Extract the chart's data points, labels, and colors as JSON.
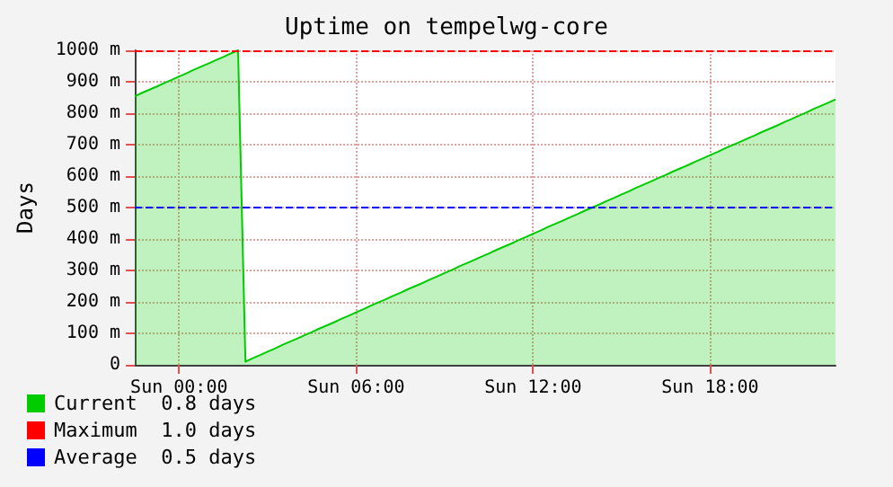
{
  "chart_data": {
    "type": "area",
    "title": "Uptime on tempelwg-core",
    "ylabel": "Days",
    "categories": [
      null,
      null,
      null,
      null,
      null,
      null,
      "Sun 00:00",
      null,
      null,
      null,
      null,
      null,
      null,
      null,
      null,
      null,
      null,
      null,
      null,
      null,
      null,
      null,
      null,
      null,
      null,
      null,
      null,
      null,
      null,
      null,
      "Sun 06:00",
      null,
      null,
      null,
      null,
      null,
      null,
      null,
      null,
      null,
      null,
      null,
      null,
      null,
      null,
      null,
      null,
      null,
      null,
      null,
      null,
      null,
      null,
      null,
      "Sun 12:00",
      null,
      null,
      null,
      null,
      null,
      null,
      null,
      null,
      null,
      null,
      null,
      null,
      null,
      null,
      null,
      null,
      null,
      null,
      null,
      null,
      null,
      null,
      null,
      "Sun 18:00",
      null,
      null,
      null,
      null,
      null,
      null,
      null,
      null,
      null,
      null,
      null,
      null,
      null,
      null,
      null,
      null,
      null
    ],
    "series": [
      {
        "name": "Current  0.8 days",
        "color": "#00cc00",
        "values": [
          854,
          865,
          875,
          885,
          896,
          906,
          917,
          927,
          938,
          948,
          958,
          969,
          979,
          990,
          1000,
          10,
          21,
          31,
          42,
          52,
          63,
          73,
          83,
          94,
          104,
          115,
          125,
          135,
          146,
          156,
          167,
          177,
          188,
          198,
          208,
          219,
          229,
          240,
          250,
          260,
          271,
          281,
          292,
          302,
          313,
          323,
          333,
          344,
          354,
          365,
          375,
          385,
          396,
          406,
          417,
          427,
          438,
          448,
          458,
          469,
          479,
          490,
          500,
          510,
          521,
          531,
          542,
          552,
          563,
          573,
          583,
          594,
          604,
          615,
          625,
          635,
          646,
          656,
          667,
          677,
          688,
          698,
          708,
          719,
          729,
          740,
          750,
          760,
          771,
          781,
          792,
          802,
          813,
          823,
          833,
          844
        ]
      }
    ],
    "ylim": [
      0,
      1000
    ],
    "yticks": [
      0,
      {
        "value": 100,
        "label": "100 m"
      },
      {
        "value": 200,
        "label": "200 m"
      },
      {
        "value": 300,
        "label": "300 m"
      },
      {
        "value": 400,
        "label": "400 m"
      },
      {
        "value": 500,
        "label": "500 m"
      },
      {
        "value": 600,
        "label": "600 m"
      },
      {
        "value": 700,
        "label": "700 m"
      },
      {
        "value": 800,
        "label": "800 m"
      },
      {
        "value": 900,
        "label": "900 m"
      },
      {
        "value": 1000,
        "label": "1000 m"
      }
    ],
    "ref_lines": [
      {
        "axis": "y",
        "value": 1000,
        "label": "Maximum  1.0 days",
        "color": "#ff0000",
        "line_style": "dashed"
      },
      {
        "axis": "y",
        "value": 500,
        "label": "Average  0.5 days",
        "color": "#0000ff",
        "line_style": "dashed"
      }
    ],
    "grid": true,
    "legend": "bottom left",
    "marker": "none"
  }
}
